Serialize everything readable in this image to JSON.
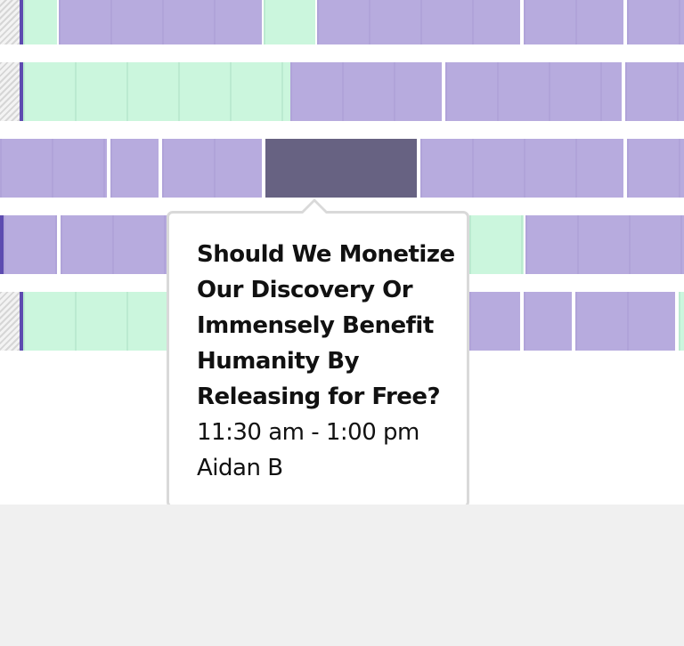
{
  "tooltip": {
    "title": "Should We Monetize Our Discovery Or Immensely Benefit Humanity By Releasing for Free?",
    "time": "11:30 am - 1:00 pm",
    "speaker": "Aidan B"
  },
  "colors": {
    "available_session": "#b7abde",
    "open_slot": "#cbf6dd",
    "selected_session": "#676282",
    "current_time_marker": "#5d4bb0",
    "footer": "#f0f0f0"
  }
}
